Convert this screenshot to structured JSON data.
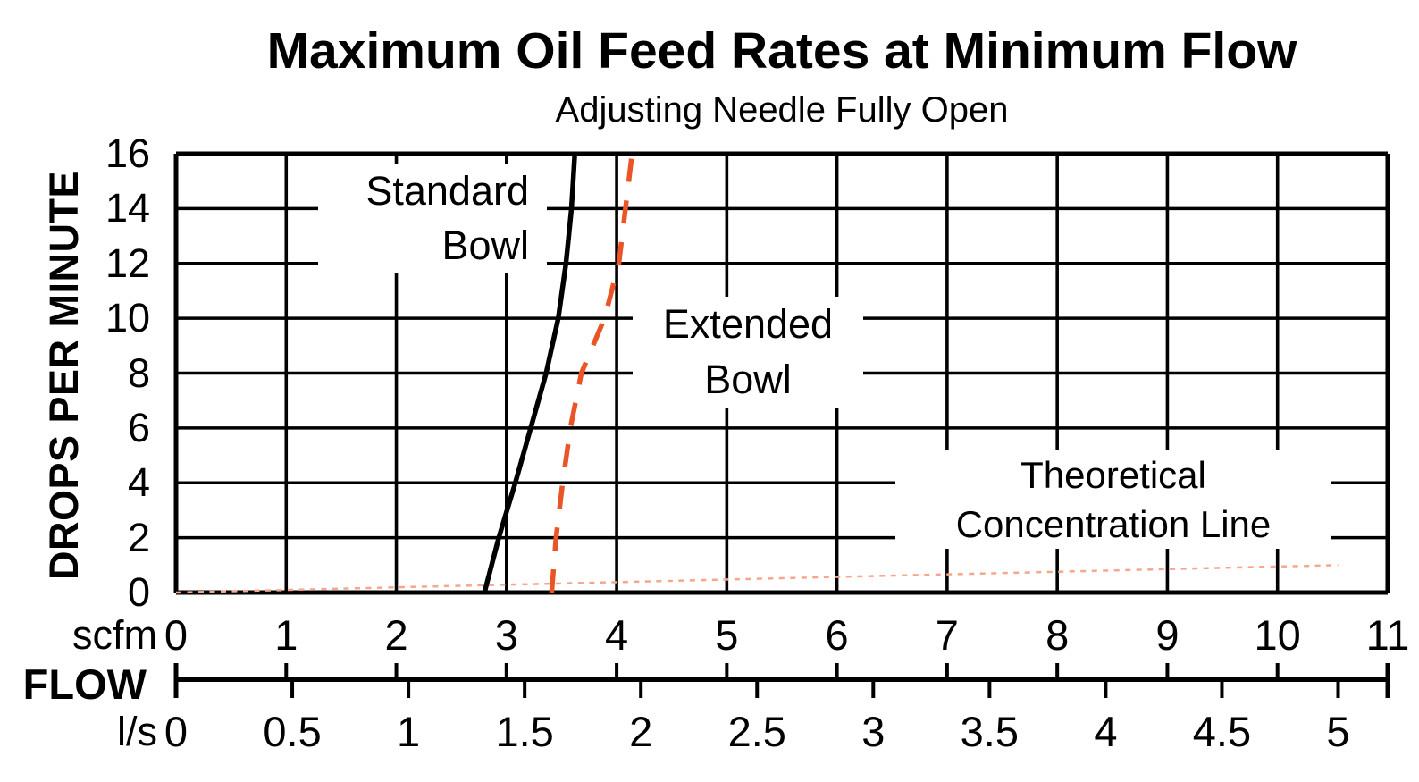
{
  "page": {
    "background": "#ffffff"
  },
  "header": {
    "title": "Maximum Oil Feed Rates at Minimum Flow",
    "subtitle": "Adjusting Needle Fully Open"
  },
  "y_axis": {
    "title": "DROPS PER MINUTE",
    "tick_labels": [
      "16",
      "14",
      "12",
      "10",
      "8",
      "6",
      "4",
      "2",
      "0"
    ]
  },
  "x_axis": {
    "scfm": {
      "unit_label": "scfm",
      "tick_labels": [
        "0",
        "1",
        "2",
        "3",
        "4",
        "5",
        "6",
        "7",
        "8",
        "9",
        "10",
        "11"
      ]
    },
    "flow_label": "FLOW",
    "ls": {
      "unit_label": "l/s",
      "tick_labels": [
        "0",
        "0.5",
        "1",
        "1.5",
        "2",
        "2.5",
        "3",
        "3.5",
        "4",
        "4.5",
        "5"
      ]
    }
  },
  "annotations": {
    "standard_bowl": {
      "line1": "Standard",
      "line2": "Bowl"
    },
    "extended_bowl": {
      "line1": "Extended",
      "line2": "Bowl"
    },
    "theoretical": {
      "line1": "Theoretical",
      "line2": "Concentration Line"
    }
  },
  "colors": {
    "ink": "#000000",
    "extended_bowl_line": "#EB5426",
    "theoretical_line": "#F5A78D"
  },
  "chart_data": {
    "type": "line",
    "title": "Maximum Oil Feed Rates at Minimum Flow",
    "subtitle": "Adjusting Needle Fully Open",
    "xlabel": "FLOW",
    "x_units": [
      "scfm",
      "l/s"
    ],
    "ylabel": "DROPS PER MINUTE",
    "xlim_scfm": [
      0,
      11
    ],
    "ylim": [
      0,
      16
    ],
    "x_gridline_step_scfm": 1,
    "y_gridline_step": 2,
    "scfm_per_ls": 2.11,
    "grid": true,
    "series": [
      {
        "name": "Standard Bowl",
        "style": "solid",
        "color": "#000000",
        "points_scfm_drops": [
          [
            2.8,
            0
          ],
          [
            2.93,
            2
          ],
          [
            3.08,
            4
          ],
          [
            3.22,
            6
          ],
          [
            3.36,
            8
          ],
          [
            3.47,
            10
          ],
          [
            3.54,
            12
          ],
          [
            3.59,
            14
          ],
          [
            3.62,
            16
          ]
        ]
      },
      {
        "name": "Extended Bowl",
        "style": "dashed",
        "color": "#EB5426",
        "points_scfm_drops": [
          [
            3.41,
            0
          ],
          [
            3.45,
            2
          ],
          [
            3.51,
            4
          ],
          [
            3.58,
            6
          ],
          [
            3.68,
            8
          ],
          [
            3.89,
            10
          ],
          [
            4.02,
            12
          ],
          [
            4.08,
            14
          ],
          [
            4.14,
            16
          ]
        ]
      },
      {
        "name": "Theoretical Concentration Line",
        "style": "fine-dashed",
        "color": "#F5A78D",
        "points_scfm_drops": [
          [
            0,
            0
          ],
          [
            10.55,
            1
          ]
        ]
      }
    ]
  }
}
